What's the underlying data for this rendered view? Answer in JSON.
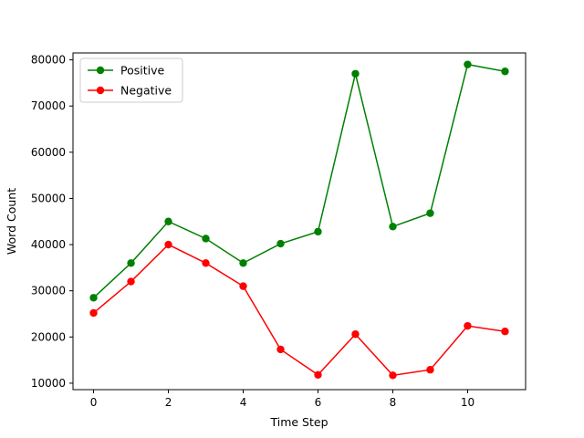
{
  "chart_data": {
    "type": "line",
    "title": "",
    "xlabel": "Time Step",
    "ylabel": "Word Count",
    "x": [
      0,
      1,
      2,
      3,
      4,
      5,
      6,
      7,
      8,
      9,
      10,
      11
    ],
    "xlim": [
      -0.55,
      11.55
    ],
    "ylim": [
      8600,
      81500
    ],
    "xticks": [
      0,
      2,
      4,
      6,
      8,
      10
    ],
    "yticks": [
      10000,
      20000,
      30000,
      40000,
      50000,
      60000,
      70000,
      80000
    ],
    "grid": false,
    "legend": "upper-left",
    "series": [
      {
        "name": "Positive",
        "color": "#008000",
        "marker": "circle",
        "values": [
          28500,
          36000,
          45000,
          41300,
          36000,
          40200,
          42800,
          77000,
          43900,
          46800,
          79000,
          77500
        ]
      },
      {
        "name": "Negative",
        "color": "#ff0000",
        "marker": "circle",
        "values": [
          25200,
          32000,
          40000,
          36000,
          31000,
          17300,
          11800,
          20600,
          11700,
          12900,
          22400,
          21200
        ]
      }
    ]
  }
}
